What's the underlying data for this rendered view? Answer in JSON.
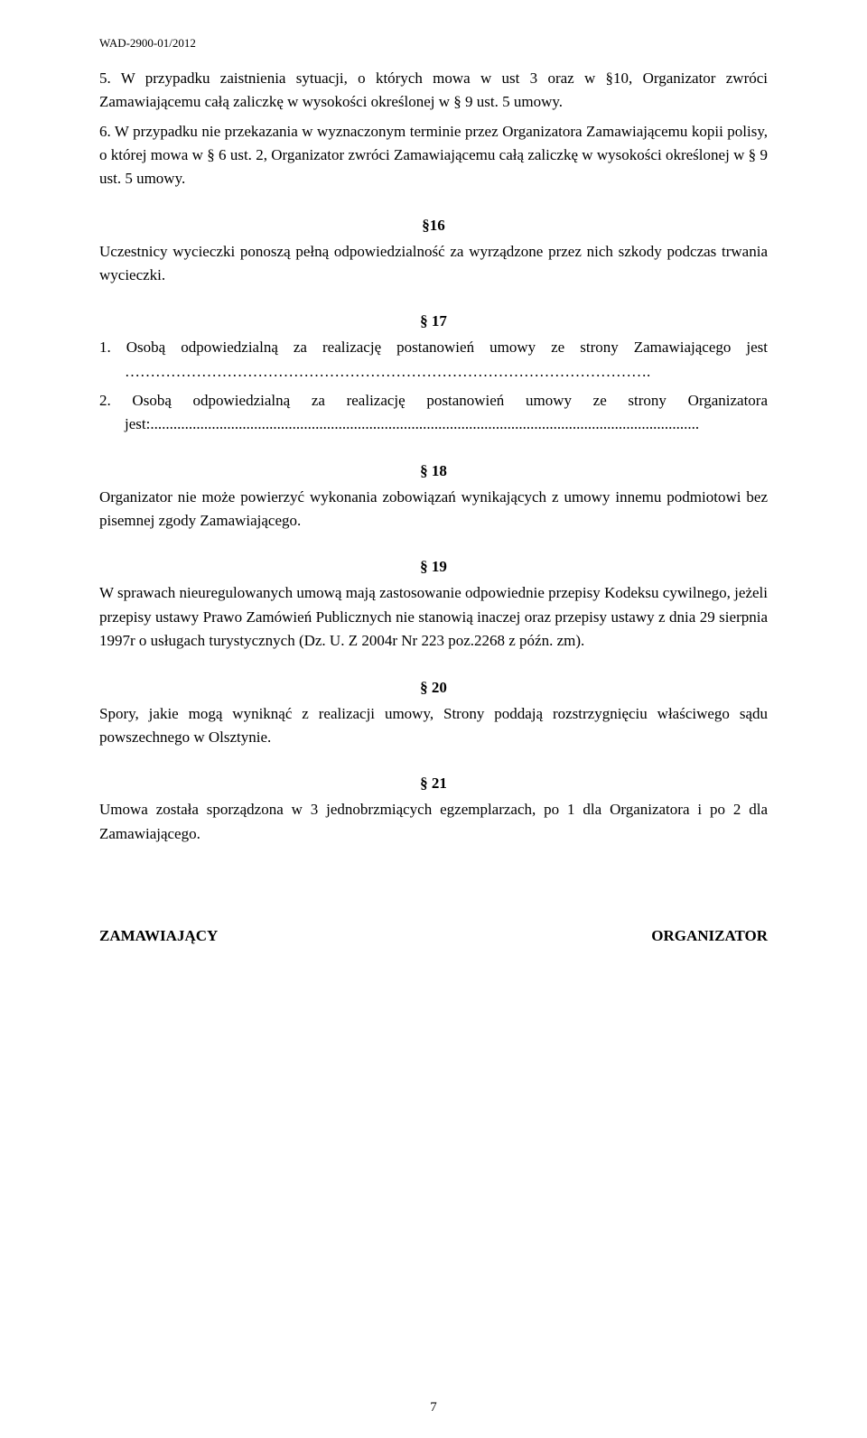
{
  "header_ref": "WAD-2900-01/2012",
  "p5": "5. W przypadku zaistnienia sytuacji, o których mowa w ust 3 oraz w §10, Organizator zwróci Zamawiającemu całą zaliczkę w  wysokości określonej w § 9 ust. 5 umowy.",
  "p6": "6. W przypadku nie przekazania w wyznaczonym terminie przez Organizatora Zamawiającemu kopii polisy, o której mowa w § 6 ust. 2, Organizator zwróci Zamawiającemu całą zaliczkę w  wysokości określonej w § 9 ust. 5 umowy.",
  "s16": {
    "num": "§16",
    "text": "Uczestnicy wycieczki ponoszą pełną odpowiedzialność za wyrządzone przez nich szkody podczas trwania wycieczki."
  },
  "s17": {
    "num": "§ 17",
    "item1": "1. Osobą odpowiedzialną za realizację postanowień umowy ze strony Zamawiającego jest ………………………………………………………………………………………….",
    "item2": "2. Osobą odpowiedzialną za realizację postanowień umowy ze strony Organizatora jest:..............................................................................................................................................."
  },
  "s18": {
    "num": "§ 18",
    "text": "Organizator nie może powierzyć wykonania zobowiązań wynikających z umowy innemu podmiotowi bez pisemnej  zgody Zamawiającego."
  },
  "s19": {
    "num": "§ 19",
    "text": "W sprawach nieuregulowanych umową mają zastosowanie odpowiednie przepisy Kodeksu cywilnego, jeżeli przepisy ustawy Prawo Zamówień Publicznych nie stanowią inaczej oraz przepisy ustawy z dnia 29 sierpnia 1997r o usługach turystycznych (Dz. U. Z 2004r Nr 223 poz.2268 z późn. zm)."
  },
  "s20": {
    "num": "§ 20",
    "text": "Spory, jakie mogą wyniknąć z realizacji umowy, Strony poddają rozstrzygnięciu właściwego sądu powszechnego w Olsztynie."
  },
  "s21": {
    "num": "§ 21",
    "text": "Umowa została sporządzona w 3 jednobrzmiących egzemplarzach, po 1 dla Organizatora i po 2 dla Zamawiającego."
  },
  "sig_left": "ZAMAWIAJĄCY",
  "sig_right": "ORGANIZATOR",
  "page_number": "7"
}
